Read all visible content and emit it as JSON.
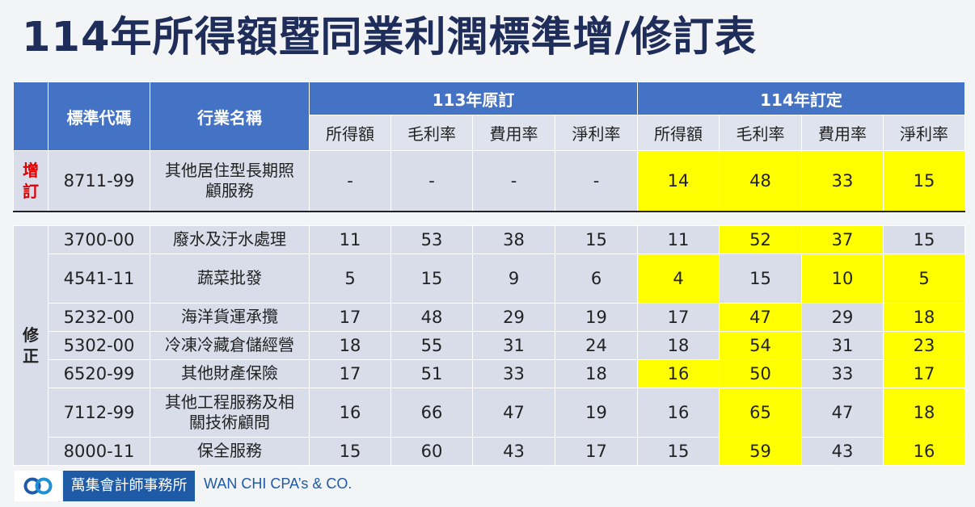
{
  "title": "114年所得額暨同業利潤標準增/修訂表",
  "header": {
    "code": "標準代碼",
    "industry": "行業名稱",
    "group_old": "113年原訂",
    "group_new": "114年訂定",
    "cols": [
      "所得額",
      "毛利率",
      "費用率",
      "淨利率",
      "所得額",
      "毛利率",
      "費用率",
      "淨利率"
    ]
  },
  "sections": {
    "added": "增\n訂",
    "revised": "修\n正"
  },
  "added_row": {
    "code": "8711-99",
    "name": "其他居住型長期照\n顧服務",
    "old": [
      "-",
      "-",
      "-",
      "-"
    ],
    "new": [
      "14",
      "48",
      "33",
      "15"
    ]
  },
  "revised_rows": [
    {
      "code": "3700-00",
      "name": "廢水及汙水處理",
      "old": [
        "11",
        "53",
        "38",
        "15"
      ],
      "new": [
        "11",
        "52",
        "37",
        "15"
      ]
    },
    {
      "code": "4541-11",
      "name": "蔬菜批發",
      "old": [
        "5",
        "15",
        "9",
        "6"
      ],
      "new": [
        "4",
        "15",
        "10",
        "5"
      ]
    },
    {
      "code": "5232-00",
      "name": "海洋貨運承攬",
      "old": [
        "17",
        "48",
        "29",
        "19"
      ],
      "new": [
        "17",
        "47",
        "29",
        "18"
      ]
    },
    {
      "code": "5302-00",
      "name": "冷凍冷藏倉儲經營",
      "old": [
        "18",
        "55",
        "31",
        "24"
      ],
      "new": [
        "18",
        "54",
        "31",
        "23"
      ]
    },
    {
      "code": "6520-99",
      "name": "其他財產保險",
      "old": [
        "17",
        "51",
        "33",
        "18"
      ],
      "new": [
        "16",
        "50",
        "33",
        "17"
      ]
    },
    {
      "code": "7112-99",
      "name": "其他工程服務及相\n關技術顧問",
      "old": [
        "16",
        "66",
        "47",
        "19"
      ],
      "new": [
        "16",
        "65",
        "47",
        "18"
      ]
    },
    {
      "code": "8000-11",
      "name": "保全服務",
      "old": [
        "15",
        "60",
        "43",
        "17"
      ],
      "new": [
        "15",
        "59",
        "43",
        "16"
      ]
    }
  ],
  "footer": {
    "brand_zh": "萬集會計師事務所",
    "brand_en": "WAN CHI CPA’s & CO."
  },
  "highlight_color": "#ffff00",
  "header_color": "#4472c4"
}
